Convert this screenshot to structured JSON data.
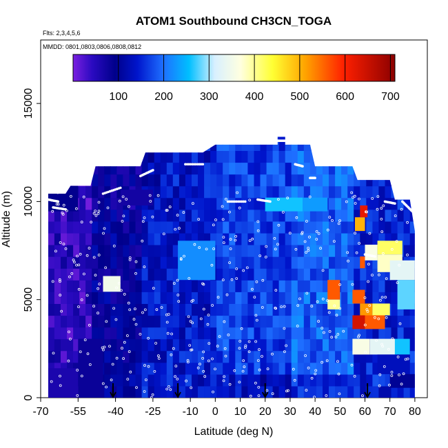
{
  "chart_data": {
    "type": "heatmap",
    "title": "ATOM1 Southbound CH3CN_TOGA",
    "flights_label": "Flts: 2,3,4,5,6",
    "dates_label": "MMDD: 0801,0803,0806,0808,0812",
    "xlabel": "Latitude (deg N)",
    "ylabel": "Altitude (m)",
    "xlim": [
      -70,
      85
    ],
    "ylim": [
      0,
      17500
    ],
    "x_ticks": [
      -70,
      -55,
      -40,
      -25,
      -10,
      0,
      10,
      20,
      30,
      40,
      50,
      60,
      70,
      80
    ],
    "x_tick_labels": [
      "-70",
      "-55",
      "-40",
      "-25",
      "-10",
      "0",
      "10",
      "20",
      "30",
      "40",
      "50",
      "60",
      "70",
      "80"
    ],
    "y_ticks": [
      0,
      5000,
      10000,
      15000
    ],
    "y_tick_labels": [
      "0",
      "5000",
      "10000",
      "15000"
    ],
    "colorbar": {
      "range": [
        0,
        710
      ],
      "ticks": [
        100,
        200,
        300,
        400,
        500,
        600,
        700
      ],
      "tick_labels": [
        "100",
        "200",
        "300",
        "400",
        "500",
        "600",
        "700"
      ],
      "colors": [
        "#7a1fe0",
        "#00008b",
        "#0a1ad0",
        "#1e90ff",
        "#00bfff",
        "#d8f0ff",
        "#ffffe0",
        "#ffff33",
        "#ffa500",
        "#ff2000",
        "#8b0000"
      ]
    },
    "grid": false,
    "legend": "colorbar top",
    "upper_envelope": [
      [
        -67,
        10400
      ],
      [
        -60,
        10400
      ],
      [
        -58,
        10800
      ],
      [
        -50,
        10800
      ],
      [
        -48,
        11800
      ],
      [
        -30,
        11800
      ],
      [
        -28,
        12500
      ],
      [
        -5,
        12500
      ],
      [
        0,
        12900
      ],
      [
        25,
        12900
      ],
      [
        25,
        13300
      ],
      [
        28,
        13300
      ],
      [
        28,
        12900
      ],
      [
        38,
        12900
      ],
      [
        40,
        11800
      ],
      [
        55,
        11800
      ],
      [
        57,
        11100
      ],
      [
        70,
        11100
      ],
      [
        72,
        10100
      ],
      [
        78,
        10100
      ],
      [
        80,
        8500
      ],
      [
        80,
        0
      ]
    ],
    "lower_left": -67,
    "cells": [
      {
        "lat": [
          -67,
          -55
        ],
        "alt": [
          9500,
          10800
        ],
        "value": 90
      },
      {
        "lat": [
          -67,
          -55
        ],
        "alt": [
          0,
          1500
        ],
        "value": 60
      },
      {
        "lat": [
          -55,
          -45
        ],
        "alt": [
          0,
          3000
        ],
        "value": 80
      },
      {
        "lat": [
          -45,
          -38
        ],
        "alt": [
          5400,
          6200
        ],
        "value": 350
      },
      {
        "lat": [
          -38,
          -25
        ],
        "alt": [
          9800,
          10600
        ],
        "value": 70
      },
      {
        "lat": [
          -15,
          0
        ],
        "alt": [
          6000,
          8000
        ],
        "value": 220
      },
      {
        "lat": [
          20,
          35
        ],
        "alt": [
          9500,
          10200
        ],
        "value": 260
      },
      {
        "lat": [
          35,
          45
        ],
        "alt": [
          9500,
          10200
        ],
        "value": 230
      },
      {
        "lat": [
          45,
          50
        ],
        "alt": [
          5000,
          6000
        ],
        "value": 560
      },
      {
        "lat": [
          45,
          50
        ],
        "alt": [
          4500,
          5000
        ],
        "value": 400
      },
      {
        "lat": [
          56,
          60
        ],
        "alt": [
          8500,
          9200
        ],
        "value": 500
      },
      {
        "lat": [
          58,
          61
        ],
        "alt": [
          9200,
          9800
        ],
        "value": 620
      },
      {
        "lat": [
          58,
          60
        ],
        "alt": [
          6600,
          7200
        ],
        "value": 560
      },
      {
        "lat": [
          60,
          65
        ],
        "alt": [
          7000,
          7800
        ],
        "value": 360
      },
      {
        "lat": [
          65,
          75
        ],
        "alt": [
          7300,
          8000
        ],
        "value": 420
      },
      {
        "lat": [
          65,
          75
        ],
        "alt": [
          6400,
          7300
        ],
        "value": 380
      },
      {
        "lat": [
          55,
          60
        ],
        "alt": [
          4800,
          5500
        ],
        "value": 560
      },
      {
        "lat": [
          55,
          60
        ],
        "alt": [
          3500,
          4200
        ],
        "value": 640
      },
      {
        "lat": [
          60,
          68
        ],
        "alt": [
          3500,
          4200
        ],
        "value": 560
      },
      {
        "lat": [
          58,
          63
        ],
        "alt": [
          4200,
          4800
        ],
        "value": 520
      },
      {
        "lat": [
          63,
          70
        ],
        "alt": [
          4200,
          4800
        ],
        "value": 420
      },
      {
        "lat": [
          55,
          62
        ],
        "alt": [
          2200,
          3000
        ],
        "value": 360
      },
      {
        "lat": [
          62,
          72
        ],
        "alt": [
          2200,
          3000
        ],
        "value": 330
      },
      {
        "lat": [
          72,
          78
        ],
        "alt": [
          2200,
          3000
        ],
        "value": 260
      },
      {
        "lat": [
          65,
          78
        ],
        "alt": [
          1200,
          2200
        ],
        "value": 130
      },
      {
        "lat": [
          70,
          80
        ],
        "alt": [
          500,
          1200
        ],
        "value": 100
      },
      {
        "lat": [
          70,
          80
        ],
        "alt": [
          6000,
          7000
        ],
        "value": 330
      },
      {
        "lat": [
          73,
          80
        ],
        "alt": [
          4500,
          6000
        ],
        "value": 280
      }
    ],
    "arrows_latitude": [
      -41,
      -15,
      20,
      61
    ]
  }
}
